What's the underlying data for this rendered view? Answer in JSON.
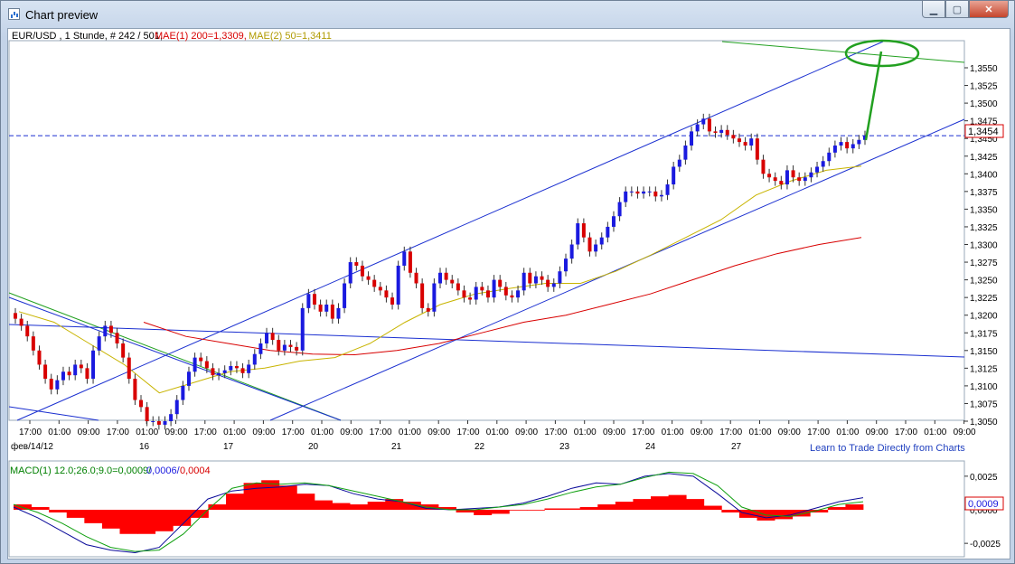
{
  "window": {
    "title": "Chart preview"
  },
  "main_panel": {
    "header": {
      "symbol_label": "EUR/USD , 1 Stunde, # 242 / 501,",
      "ma1_label": "MAE(1) 200=1,3309,",
      "ma2_label": "MAE(2) 50=1,3411"
    },
    "current_price_label": "1,3454",
    "link_text": "Learn to Trade Directly from Charts",
    "y_ticks": [
      "1,3550",
      "1,3525",
      "1,3500",
      "1,3475",
      "1,3450",
      "1,3425",
      "1,3400",
      "1,3375",
      "1,3350",
      "1,3325",
      "1,3300",
      "1,3275",
      "1,3250",
      "1,3225",
      "1,3200",
      "1,3175",
      "1,3150",
      "1,3125",
      "1,3100",
      "1,3075",
      "1,3050"
    ],
    "time_ticks": [
      "17:00",
      "01:00",
      "09:00",
      "17:00",
      "01:00",
      "09:00",
      "17:00",
      "01:00",
      "09:00",
      "17:00",
      "01:00",
      "09:00",
      "17:00",
      "01:00",
      "09:00",
      "17:00",
      "01:00",
      "09:00",
      "17:00",
      "01:00",
      "09:00",
      "17:00",
      "01:00",
      "09:00",
      "17:00",
      "01:00",
      "09:00",
      "17:00",
      "01:00",
      "09:00",
      "17:00",
      "01:00",
      "09:00"
    ],
    "date_ticks": [
      "фев/14/12",
      "16",
      "17",
      "20",
      "21",
      "22",
      "23",
      "24",
      "27"
    ]
  },
  "macd_panel": {
    "label": "MACD(1) 12.0;26.0;9.0=0,0009/",
    "signal_label": "0,0006/",
    "hist_label": "0,0004",
    "current_value_label": "0,0009",
    "y_ticks": [
      "0,0025",
      "0,0000",
      "-0,0025"
    ]
  },
  "colors": {
    "ma200": "#d80000",
    "ma50": "#c8b400",
    "candle": "#1a1adf",
    "channel": "#1a2fd0",
    "annotation": "#22a020",
    "macd_hist": "#ff0000",
    "macd_line": "#0a0a9a",
    "signal_line": "#10a010"
  },
  "chart_data": [
    {
      "type": "candlestick",
      "series": [
        {
          "name": "EUR/USD",
          "close": [
            1.3195,
            1.3185,
            1.317,
            1.315,
            1.313,
            1.311,
            1.3095,
            1.3108,
            1.312,
            1.3115,
            1.313,
            1.3125,
            1.311,
            1.315,
            1.317,
            1.3185,
            1.3175,
            1.316,
            1.314,
            1.311,
            1.308,
            1.307,
            1.305,
            1.305,
            1.3045,
            1.305,
            1.306,
            1.308,
            1.31,
            1.312,
            1.314,
            1.3135,
            1.3125,
            1.3115,
            1.3118,
            1.3122,
            1.3128,
            1.3125,
            1.3118,
            1.313,
            1.3145,
            1.316,
            1.3175,
            1.3165,
            1.315,
            1.3158,
            1.3155,
            1.315,
            1.321,
            1.323,
            1.3215,
            1.3205,
            1.3215,
            1.3195,
            1.321,
            1.3245,
            1.3275,
            1.327,
            1.3255,
            1.325,
            1.324,
            1.3235,
            1.3225,
            1.3215,
            1.327,
            1.329,
            1.326,
            1.3245,
            1.321,
            1.3205,
            1.3245,
            1.326,
            1.325,
            1.3245,
            1.3235,
            1.3225,
            1.3222,
            1.324,
            1.3235,
            1.3225,
            1.325,
            1.324,
            1.3228,
            1.3225,
            1.3235,
            1.326,
            1.3245,
            1.3255,
            1.325,
            1.324,
            1.3245,
            1.3262,
            1.328,
            1.33,
            1.333,
            1.331,
            1.329,
            1.33,
            1.331,
            1.3325,
            1.334,
            1.336,
            1.3375,
            1.3375,
            1.3372,
            1.3375,
            1.3375,
            1.3368,
            1.337,
            1.3385,
            1.341,
            1.342,
            1.344,
            1.346,
            1.347,
            1.3478,
            1.346,
            1.3458,
            1.3462,
            1.3455,
            1.345,
            1.3445,
            1.344,
            1.345,
            1.342,
            1.34,
            1.3395,
            1.339,
            1.3385,
            1.3405,
            1.3395,
            1.339,
            1.3395,
            1.3402,
            1.341,
            1.3418,
            1.343,
            1.344,
            1.3445,
            1.3436,
            1.3442,
            1.3448,
            1.3454
          ]
        },
        {
          "name": "MAE(1) 200",
          "values": [
            1.319,
            1.317,
            1.316,
            1.315,
            1.3145,
            1.3144,
            1.315,
            1.316,
            1.3175,
            1.319,
            1.32,
            1.3215,
            1.323,
            1.325,
            1.327,
            1.3287,
            1.33,
            1.331
          ]
        },
        {
          "name": "MAE(2) 50",
          "values": [
            1.3205,
            1.319,
            1.316,
            1.313,
            1.309,
            1.3105,
            1.312,
            1.3125,
            1.3135,
            1.314,
            1.316,
            1.319,
            1.3215,
            1.323,
            1.3238,
            1.3245,
            1.3245,
            1.3262,
            1.3285,
            1.331,
            1.3335,
            1.337,
            1.339,
            1.3405,
            1.3411
          ]
        }
      ],
      "annotations": [
        "ascending price channel",
        "horizontal resistance at 1,3454",
        "projected target circled near 1,3560"
      ],
      "ylim": [
        1.3045,
        1.3565
      ],
      "grid": true
    },
    {
      "type": "bar",
      "name": "MACD(1) 12.0;26.0;9.0",
      "series": [
        {
          "name": "MACD histogram",
          "values": [
            0.0004,
            0.0002,
            -0.0002,
            -0.0006,
            -0.001,
            -0.0014,
            -0.0018,
            -0.0018,
            -0.0016,
            -0.0012,
            -0.0006,
            0.0004,
            0.0012,
            0.002,
            0.0022,
            0.0018,
            0.0012,
            0.0007,
            0.0005,
            0.0004,
            0.0006,
            0.0008,
            0.0006,
            0.0004,
            0.0002,
            -0.0002,
            -0.0004,
            -0.0003,
            0.0,
            0.0,
            0.0001,
            0.0001,
            0.0002,
            0.0004,
            0.0006,
            0.0008,
            0.001,
            0.0011,
            0.0008,
            0.0003,
            -0.0002,
            -0.0006,
            -0.0008,
            -0.0007,
            -0.0005,
            -0.0002,
            0.0002,
            0.0004
          ]
        },
        {
          "name": "MACD line",
          "values": [
            0.0002,
            -0.0006,
            -0.0016,
            -0.0026,
            -0.003,
            -0.0032,
            -0.0028,
            -0.001,
            0.0008,
            0.0014,
            0.0016,
            0.0017,
            0.0019,
            0.0018,
            0.0012,
            0.0008,
            0.0006,
            0.0001,
            0.0,
            0.0001,
            0.0002,
            0.0005,
            0.001,
            0.0016,
            0.002,
            0.0019,
            0.0025,
            0.0027,
            0.0025,
            0.0012,
            -0.0002,
            -0.0006,
            -0.0004,
            0.0001,
            0.0006,
            0.0009
          ]
        },
        {
          "name": "Signal line",
          "values": [
            0.0004,
            -0.0002,
            -0.001,
            -0.002,
            -0.0028,
            -0.0031,
            -0.003,
            -0.0018,
            0.0,
            0.0016,
            0.002,
            0.0019,
            0.002,
            0.0018,
            0.0014,
            0.001,
            0.0006,
            0.0002,
            0.0,
            0.0,
            0.0002,
            0.0004,
            0.0008,
            0.0013,
            0.0017,
            0.0019,
            0.0024,
            0.0028,
            0.0027,
            0.0018,
            0.0002,
            -0.0004,
            -0.0005,
            -0.0001,
            0.0004,
            0.0006
          ]
        }
      ],
      "ylim": [
        -0.0035,
        0.0035
      ]
    }
  ]
}
